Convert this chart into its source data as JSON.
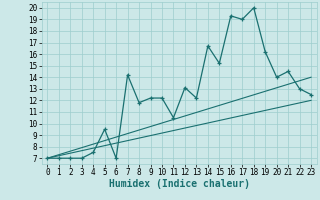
{
  "xlabel": "Humidex (Indice chaleur)",
  "bg_color": "#cce8e8",
  "line_color": "#1a7070",
  "grid_color": "#9ecece",
  "xlim": [
    -0.5,
    23.5
  ],
  "ylim": [
    6.5,
    20.5
  ],
  "xticks": [
    0,
    1,
    2,
    3,
    4,
    5,
    6,
    7,
    8,
    9,
    10,
    11,
    12,
    13,
    14,
    15,
    16,
    17,
    18,
    19,
    20,
    21,
    22,
    23
  ],
  "yticks": [
    7,
    8,
    9,
    10,
    11,
    12,
    13,
    14,
    15,
    16,
    17,
    18,
    19,
    20
  ],
  "main_x": [
    0,
    1,
    2,
    3,
    4,
    5,
    6,
    7,
    8,
    9,
    10,
    11,
    12,
    13,
    14,
    15,
    16,
    17,
    18,
    19,
    20,
    21,
    22,
    23
  ],
  "main_y": [
    7.0,
    7.0,
    7.0,
    7.0,
    7.5,
    9.5,
    7.0,
    14.2,
    11.8,
    12.2,
    12.2,
    10.5,
    13.1,
    12.2,
    16.7,
    15.2,
    19.3,
    19.0,
    20.0,
    16.2,
    14.0,
    14.5,
    13.0,
    12.5
  ],
  "line2_x": [
    0,
    23
  ],
  "line2_y": [
    7.0,
    14.0
  ],
  "line3_x": [
    0,
    23
  ],
  "line3_y": [
    7.0,
    12.0
  ],
  "tick_fontsize": 5.5,
  "label_fontsize": 7
}
